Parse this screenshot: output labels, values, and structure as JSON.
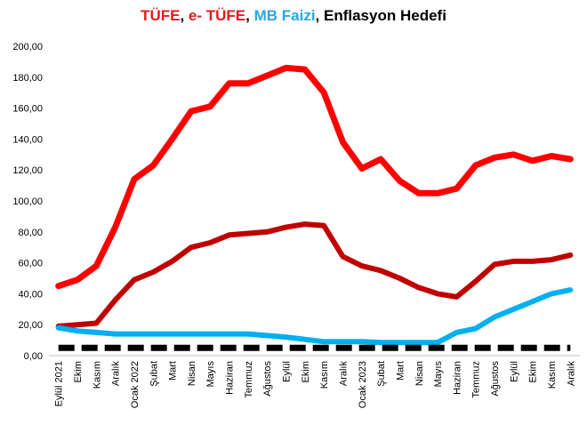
{
  "chart_data": {
    "type": "line",
    "title_parts": [
      {
        "text": "TÜFE",
        "color": "#e31a1c"
      },
      {
        "text": ", ",
        "color": "#000000"
      },
      {
        "text": "e- TÜFE",
        "color": "#e31a1c"
      },
      {
        "text": ", ",
        "color": "#000000"
      },
      {
        "text": "MB Faizi",
        "color": "#2aa7df"
      },
      {
        "text": ", Enflasyon Hedefi",
        "color": "#000000"
      }
    ],
    "categories": [
      "Eylül 2021",
      "Ekim",
      "Kasım",
      "Aralık",
      "Ocak 2022",
      "Şubat",
      "Mart",
      "Nisan",
      "Mayıs",
      "Haziran",
      "Temmuz",
      "Ağustos",
      "Eylül",
      "Ekim",
      "Kasım",
      "Aralık",
      "Ocak 2023",
      "Şubat",
      "Mart",
      "Nisan",
      "Mayıs",
      "Haziran",
      "Temmuz",
      "Ağustos",
      "Eylül",
      "Ekim",
      "Kasım",
      "Aralık"
    ],
    "ylim": [
      0,
      200
    ],
    "yticks": [
      "0,00",
      "20,00",
      "40,00",
      "60,00",
      "80,00",
      "100,00",
      "120,00",
      "140,00",
      "160,00",
      "180,00",
      "200,00"
    ],
    "grid": false,
    "legend": "none",
    "series": [
      {
        "name": "e- TÜFE",
        "color": "#ff0000",
        "style": "solid",
        "values": [
          45,
          49,
          58,
          83,
          114,
          123,
          140,
          158,
          161,
          176,
          176,
          181,
          186,
          185,
          170,
          138,
          121,
          127,
          113,
          105,
          105,
          108,
          123,
          128,
          130,
          126,
          129,
          127
        ]
      },
      {
        "name": "TÜFE",
        "color": "#c00000",
        "style": "solid",
        "values": [
          19,
          20,
          21,
          36,
          49,
          54,
          61,
          70,
          73,
          78,
          79,
          80,
          83,
          85,
          84,
          64,
          58,
          55,
          50,
          44,
          40,
          38,
          48,
          59,
          61,
          61,
          62,
          65
        ]
      },
      {
        "name": "MB Faizi",
        "color": "#00b0f0",
        "style": "solid",
        "values": [
          18,
          16,
          15,
          14,
          14,
          14,
          14,
          14,
          14,
          14,
          14,
          13,
          12,
          10.5,
          9,
          9,
          9,
          8.5,
          8.5,
          8.5,
          8.5,
          15,
          17.5,
          25,
          30,
          35,
          40,
          42.5
        ]
      },
      {
        "name": "Enflasyon Hedefi",
        "color": "#000000",
        "style": "dashed",
        "values": [
          5,
          5,
          5,
          5,
          5,
          5,
          5,
          5,
          5,
          5,
          5,
          5,
          5,
          5,
          5,
          5,
          5,
          5,
          5,
          5,
          5,
          5,
          5,
          5,
          5,
          5,
          5,
          5
        ]
      }
    ]
  }
}
